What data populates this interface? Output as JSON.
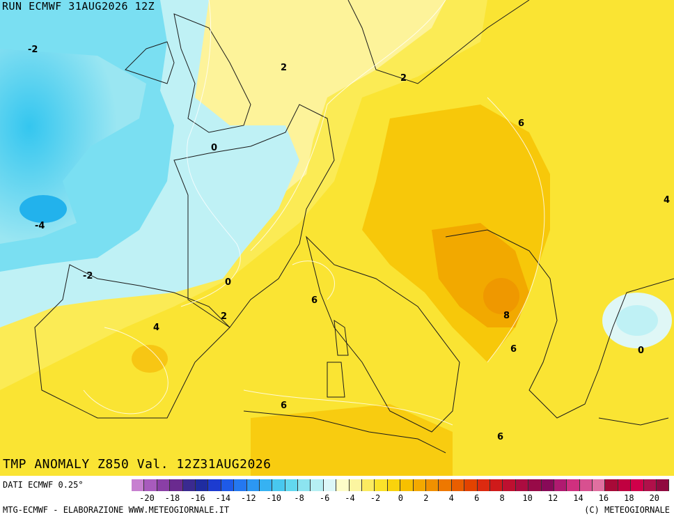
{
  "header": {
    "run": "RUN ECMWF 31AUG2026 12Z"
  },
  "title": "TMP ANOMALY Z850 Val. 12Z31AUG2026",
  "footer": {
    "data_source": "DATI ECMWF 0.25°",
    "left_credit": "MTG-ECMWF - ELABORAZIONE WWW.METEOGIORNALE.IT",
    "right_credit": "(C) METEOGIORNALE"
  },
  "contour_labels": [
    {
      "text": "-2"
    },
    {
      "text": "2"
    },
    {
      "text": "2"
    },
    {
      "text": "6"
    },
    {
      "text": "0"
    },
    {
      "text": "4"
    },
    {
      "text": "-4"
    },
    {
      "text": "-2"
    },
    {
      "text": "0"
    },
    {
      "text": "6"
    },
    {
      "text": "2"
    },
    {
      "text": "4"
    },
    {
      "text": "8"
    },
    {
      "text": "6"
    },
    {
      "text": "0"
    },
    {
      "text": "6"
    },
    {
      "text": "6"
    }
  ],
  "scale": {
    "colors": [
      "#c77fd0",
      "#a85bbd",
      "#8a3fa6",
      "#6a2a8f",
      "#3a2a90",
      "#1f2ca0",
      "#1c3bd0",
      "#1e5ae8",
      "#2478f0",
      "#2c97f2",
      "#36b2f2",
      "#48c8ef",
      "#62d8ef",
      "#8ce4f0",
      "#b6eff3",
      "#dcf7f8",
      "#fefdc8",
      "#fcf5a0",
      "#fbeb60",
      "#fbe22a",
      "#f9d30c",
      "#f7c000",
      "#f4a900",
      "#f19100",
      "#ee7800",
      "#e95e00",
      "#e34300",
      "#dc2a10",
      "#cf1a1a",
      "#be1030",
      "#ac0c40",
      "#980a48",
      "#880a58",
      "#b01a70",
      "#d0307f",
      "#d85090",
      "#e070a0",
      "#a80a38",
      "#c00040",
      "#d0004a",
      "#b0104a",
      "#900a40"
    ],
    "tick_labels": [
      "-20",
      "-18",
      "-16",
      "-14",
      "-12",
      "-10",
      "-8",
      "-6",
      "-4",
      "-2",
      "0",
      "2",
      "4",
      "6",
      "8",
      "10",
      "12",
      "14",
      "16",
      "18",
      "20"
    ],
    "tick_values": [
      -20,
      -18,
      -16,
      -14,
      -12,
      -10,
      -8,
      -6,
      -4,
      -2,
      0,
      2,
      4,
      6,
      8,
      10,
      12,
      14,
      16,
      18,
      20
    ]
  }
}
